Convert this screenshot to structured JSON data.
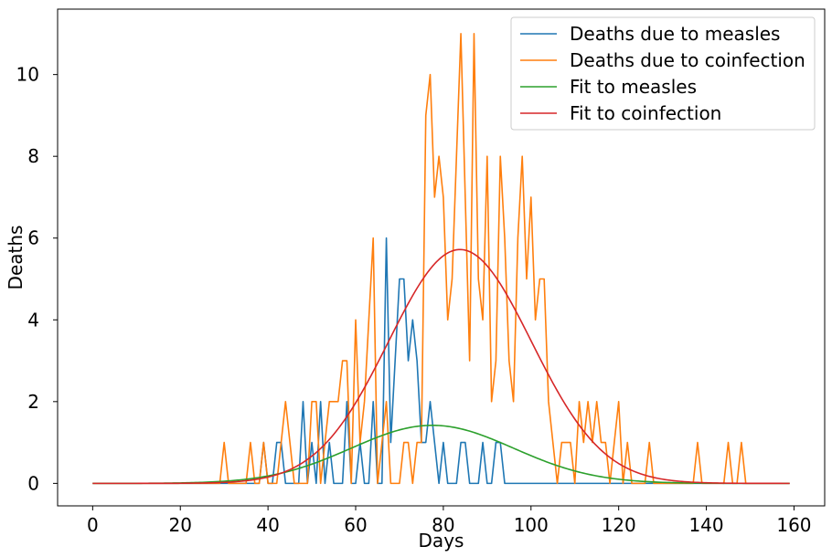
{
  "chart_data": {
    "type": "line",
    "title": "",
    "xlabel": "Days",
    "ylabel": "Deaths",
    "xlim": [
      -8,
      167
    ],
    "ylim": [
      -0.55,
      11.6
    ],
    "xticks": [
      0,
      20,
      40,
      60,
      80,
      100,
      120,
      140,
      160
    ],
    "yticks": [
      0,
      2,
      4,
      6,
      8,
      10
    ],
    "xtick_labels": [
      "0",
      "20",
      "40",
      "60",
      "80",
      "100",
      "120",
      "140",
      "160"
    ],
    "ytick_labels": [
      "0",
      "2",
      "4",
      "6",
      "8",
      "10"
    ],
    "grid": false,
    "legend_position": "top-right",
    "series": [
      {
        "name": "Deaths due to measles",
        "color": "#1f77b4",
        "x": [
          0,
          38,
          39,
          40,
          41,
          42,
          43,
          44,
          45,
          46,
          47,
          48,
          49,
          50,
          51,
          52,
          53,
          54,
          55,
          56,
          57,
          58,
          59,
          60,
          61,
          62,
          63,
          64,
          65,
          66,
          67,
          68,
          69,
          70,
          71,
          72,
          73,
          74,
          75,
          76,
          77,
          78,
          79,
          80,
          81,
          82,
          83,
          84,
          85,
          86,
          87,
          88,
          89,
          90,
          91,
          92,
          93,
          94,
          159
        ],
        "y": [
          0,
          0,
          1,
          0,
          0,
          1,
          1,
          0,
          0,
          0,
          0,
          2,
          0,
          1,
          0,
          2,
          0,
          1,
          0,
          0,
          0,
          2,
          0,
          0,
          1,
          0,
          0,
          2,
          0,
          0,
          6,
          1,
          3,
          5,
          5,
          3,
          4,
          3,
          1,
          1,
          2,
          1,
          0,
          1,
          0,
          0,
          0,
          1,
          1,
          0,
          0,
          0,
          1,
          0,
          0,
          1,
          1,
          0,
          0
        ]
      },
      {
        "name": "Deaths due to coinfection",
        "color": "#ff7f0e",
        "x": [
          0,
          29,
          30,
          31,
          32,
          33,
          34,
          35,
          36,
          37,
          38,
          39,
          40,
          41,
          42,
          43,
          44,
          45,
          46,
          47,
          48,
          49,
          50,
          51,
          52,
          53,
          54,
          55,
          56,
          57,
          58,
          59,
          60,
          61,
          62,
          63,
          64,
          65,
          66,
          67,
          68,
          69,
          70,
          71,
          72,
          73,
          74,
          75,
          76,
          77,
          78,
          79,
          80,
          81,
          82,
          83,
          84,
          85,
          86,
          87,
          88,
          89,
          90,
          91,
          92,
          93,
          94,
          95,
          96,
          97,
          98,
          99,
          100,
          101,
          102,
          103,
          104,
          105,
          106,
          107,
          108,
          109,
          110,
          111,
          112,
          113,
          114,
          115,
          116,
          117,
          118,
          119,
          120,
          121,
          122,
          123,
          124,
          125,
          126,
          127,
          128,
          129,
          130,
          131,
          132,
          133,
          134,
          135,
          136,
          137,
          138,
          139,
          140,
          141,
          142,
          143,
          144,
          145,
          146,
          147,
          148,
          149,
          150,
          159
        ],
        "y": [
          0,
          0,
          1,
          0,
          0,
          0,
          0,
          0,
          1,
          0,
          0,
          1,
          0,
          0,
          0,
          1,
          2,
          1,
          0,
          0,
          0,
          0,
          2,
          2,
          0,
          1,
          2,
          2,
          2,
          3,
          3,
          0,
          4,
          1,
          2,
          4,
          6,
          0,
          1,
          2,
          0,
          0,
          0,
          1,
          1,
          0,
          1,
          1,
          9,
          10,
          7,
          8,
          7,
          4,
          5,
          8,
          11,
          7,
          3,
          11,
          5,
          4,
          8,
          2,
          3,
          8,
          6,
          3,
          2,
          6,
          8,
          5,
          7,
          4,
          5,
          5,
          2,
          1,
          0,
          1,
          1,
          1,
          0,
          2,
          1,
          2,
          1,
          2,
          1,
          1,
          0,
          1,
          2,
          0,
          1,
          0,
          0,
          0,
          0,
          1,
          0,
          0,
          0,
          0,
          0,
          0,
          0,
          0,
          0,
          0,
          1,
          0,
          0,
          0,
          0,
          0,
          0,
          1,
          0,
          0,
          1,
          0,
          0,
          0
        ]
      },
      {
        "name": "Fit to measles",
        "color": "#2ca02c",
        "fit": {
          "kind": "gaussian",
          "amplitude": 1.42,
          "center": 77.5,
          "sigma": 18.5
        },
        "x_range": [
          0,
          159
        ]
      },
      {
        "name": "Fit to coinfection",
        "color": "#d62728",
        "fit": {
          "kind": "gaussian",
          "amplitude": 5.72,
          "center": 83.8,
          "sigma": 16.3
        },
        "x_range": [
          0,
          159
        ]
      }
    ]
  }
}
